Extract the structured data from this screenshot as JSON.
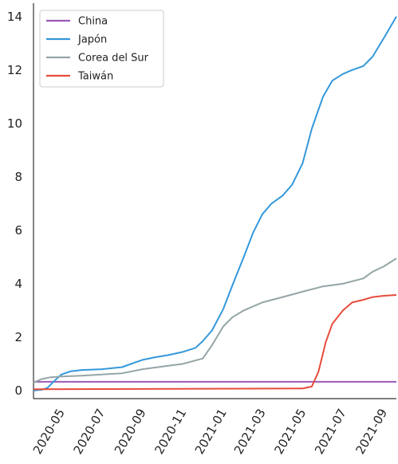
{
  "chart_data": {
    "type": "line",
    "title": "",
    "xlabel": "",
    "ylabel": "",
    "x_ticks": [
      "2020-05",
      "2020-07",
      "2020-09",
      "2020-11",
      "2021-01",
      "2021-03",
      "2021-05",
      "2021-07",
      "2021-09"
    ],
    "y_ticks": [
      "0",
      "2",
      "4",
      "6",
      "8",
      "10",
      "12",
      "14"
    ],
    "xlim": [
      "2020-03-20",
      "2021-09-20"
    ],
    "ylim": [
      -0.3,
      14.5
    ],
    "grid": false,
    "legend_position": "top-left",
    "series": [
      {
        "name": "China",
        "color": "#9b59b6",
        "points": [
          [
            "2020-03-20",
            0.33
          ],
          [
            "2021-09-20",
            0.33
          ]
        ]
      },
      {
        "name": "Japón",
        "color": "#3498db",
        "points": [
          [
            "2020-03-20",
            0.0
          ],
          [
            "2020-04-01",
            0.03
          ],
          [
            "2020-04-10",
            0.1
          ],
          [
            "2020-04-20",
            0.35
          ],
          [
            "2020-05-01",
            0.6
          ],
          [
            "2020-05-15",
            0.72
          ],
          [
            "2020-06-01",
            0.77
          ],
          [
            "2020-07-01",
            0.8
          ],
          [
            "2020-08-01",
            0.88
          ],
          [
            "2020-08-20",
            1.05
          ],
          [
            "2020-09-01",
            1.15
          ],
          [
            "2020-09-20",
            1.25
          ],
          [
            "2020-10-10",
            1.33
          ],
          [
            "2020-11-01",
            1.45
          ],
          [
            "2020-11-20",
            1.6
          ],
          [
            "2020-12-01",
            1.85
          ],
          [
            "2020-12-15",
            2.25
          ],
          [
            "2021-01-01",
            3.05
          ],
          [
            "2021-01-15",
            3.95
          ],
          [
            "2021-02-01",
            5.0
          ],
          [
            "2021-02-15",
            5.9
          ],
          [
            "2021-03-01",
            6.6
          ],
          [
            "2021-03-15",
            7.0
          ],
          [
            "2021-04-01",
            7.3
          ],
          [
            "2021-04-15",
            7.7
          ],
          [
            "2021-05-01",
            8.5
          ],
          [
            "2021-05-15",
            9.8
          ],
          [
            "2021-06-01",
            11.0
          ],
          [
            "2021-06-15",
            11.6
          ],
          [
            "2021-07-01",
            11.85
          ],
          [
            "2021-07-15",
            12.0
          ],
          [
            "2021-08-01",
            12.15
          ],
          [
            "2021-08-15",
            12.5
          ],
          [
            "2021-09-01",
            13.2
          ],
          [
            "2021-09-20",
            14.0
          ]
        ]
      },
      {
        "name": "Corea del Sur",
        "color": "#95a5a6",
        "points": [
          [
            "2020-03-20",
            0.3
          ],
          [
            "2020-04-01",
            0.43
          ],
          [
            "2020-04-15",
            0.5
          ],
          [
            "2020-05-01",
            0.53
          ],
          [
            "2020-06-01",
            0.56
          ],
          [
            "2020-07-01",
            0.6
          ],
          [
            "2020-08-01",
            0.65
          ],
          [
            "2020-09-01",
            0.8
          ],
          [
            "2020-10-01",
            0.9
          ],
          [
            "2020-11-01",
            1.0
          ],
          [
            "2020-12-01",
            1.2
          ],
          [
            "2020-12-15",
            1.7
          ],
          [
            "2021-01-01",
            2.4
          ],
          [
            "2021-01-15",
            2.75
          ],
          [
            "2021-02-01",
            3.0
          ],
          [
            "2021-03-01",
            3.3
          ],
          [
            "2021-04-01",
            3.5
          ],
          [
            "2021-05-01",
            3.7
          ],
          [
            "2021-06-01",
            3.9
          ],
          [
            "2021-07-01",
            4.0
          ],
          [
            "2021-08-01",
            4.2
          ],
          [
            "2021-08-15",
            4.45
          ],
          [
            "2021-09-01",
            4.65
          ],
          [
            "2021-09-20",
            4.95
          ]
        ]
      },
      {
        "name": "Taiwán",
        "color": "#e74c3c",
        "points": [
          [
            "2020-03-20",
            0.05
          ],
          [
            "2021-05-01",
            0.08
          ],
          [
            "2021-05-15",
            0.15
          ],
          [
            "2021-05-25",
            0.7
          ],
          [
            "2021-06-05",
            1.8
          ],
          [
            "2021-06-15",
            2.5
          ],
          [
            "2021-07-01",
            3.0
          ],
          [
            "2021-07-15",
            3.3
          ],
          [
            "2021-08-01",
            3.4
          ],
          [
            "2021-08-15",
            3.5
          ],
          [
            "2021-09-01",
            3.55
          ],
          [
            "2021-09-20",
            3.58
          ]
        ]
      }
    ]
  }
}
